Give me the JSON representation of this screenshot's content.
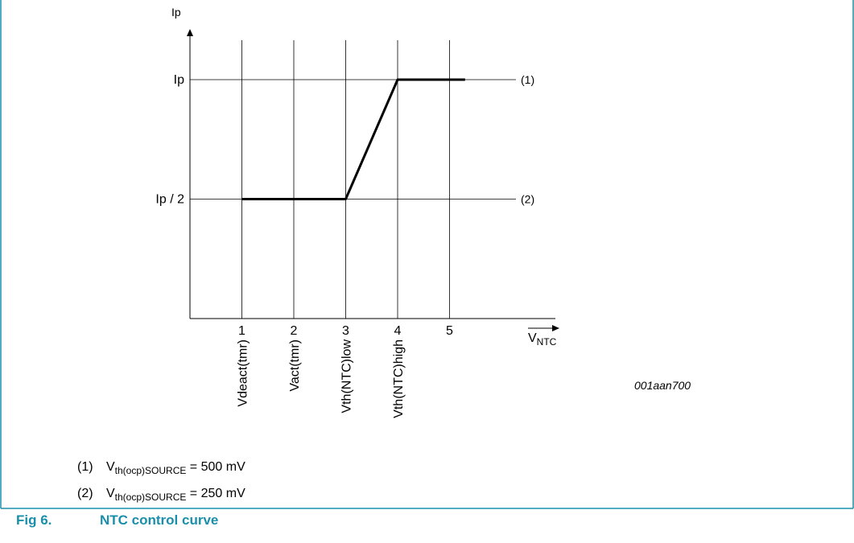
{
  "chart_data": {
    "type": "line",
    "y_axis_title": "Ip",
    "x_axis_title": "V",
    "x_axis_title_sub": "NTC",
    "x_ticks": [
      "1",
      "2",
      "3",
      "4",
      "5"
    ],
    "x_values": [
      1,
      2,
      3,
      4,
      5
    ],
    "x_range": [
      0,
      5.5
    ],
    "y_tick_labels": [
      "Ip",
      "Ip / 2"
    ],
    "y_tick_values": [
      1,
      0.5
    ],
    "y_range": [
      0,
      1.1
    ],
    "threshold_labels": [
      {
        "x": 1,
        "label": "Vdeact(tmr)"
      },
      {
        "x": 2,
        "label": "Vact(tmr)"
      },
      {
        "x": 3,
        "label": "Vth(NTC)low"
      },
      {
        "x": 4,
        "label": "Vth(NTC)high"
      }
    ],
    "curve": {
      "x": [
        1,
        3,
        4,
        5.3
      ],
      "y": [
        0.5,
        0.5,
        1,
        1
      ]
    },
    "level_labels": [
      {
        "y": 1,
        "label": "(1)"
      },
      {
        "y": 0.5,
        "label": "(2)"
      }
    ],
    "figure_code": "001aan700"
  },
  "legend": [
    {
      "num": "(1)",
      "symbol": "V",
      "sub": "th(ocp)SOURCE",
      "rest": " = 500 mV"
    },
    {
      "num": "(2)",
      "symbol": "V",
      "sub": "th(ocp)SOURCE",
      "rest": " = 250 mV"
    }
  ],
  "caption": {
    "fig": "Fig 6.",
    "title": "NTC control curve"
  },
  "colors": {
    "frame": "#1a8faa",
    "caption": "#1a8faa"
  }
}
